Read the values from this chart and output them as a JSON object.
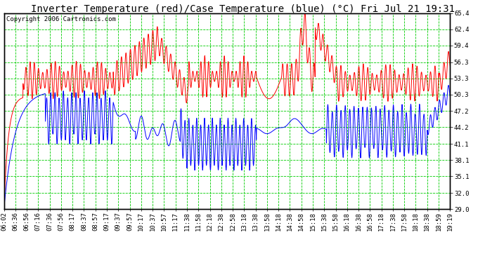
{
  "title": "Inverter Temperature (red)/Case Temperature (blue) (°C) Fri Jul 21 19:31",
  "copyright": "Copyright 2006 Cartronics.com",
  "yticks": [
    29.0,
    32.0,
    35.1,
    38.1,
    41.1,
    44.2,
    47.2,
    50.3,
    53.3,
    56.3,
    59.4,
    62.4,
    65.4
  ],
  "xtick_labels": [
    "06:02",
    "06:36",
    "06:56",
    "07:16",
    "07:36",
    "07:56",
    "08:17",
    "08:37",
    "08:57",
    "09:17",
    "09:37",
    "09:57",
    "10:17",
    "10:37",
    "10:57",
    "11:17",
    "11:38",
    "11:58",
    "12:18",
    "12:38",
    "12:58",
    "13:18",
    "13:38",
    "13:58",
    "14:18",
    "14:38",
    "14:58",
    "15:18",
    "15:38",
    "15:58",
    "16:18",
    "16:38",
    "16:58",
    "17:18",
    "17:38",
    "17:58",
    "18:18",
    "18:38",
    "18:59",
    "19:19"
  ],
  "ymin": 29.0,
  "ymax": 65.4,
  "bg_color": "#ffffff",
  "plot_bg_color": "#ffffff",
  "grid_color": "#00cc00",
  "line_red_color": "#ff0000",
  "line_blue_color": "#0000ff",
  "border_color": "#000000",
  "title_fontsize": 10,
  "tick_fontsize": 6.5,
  "copyright_fontsize": 6.5
}
